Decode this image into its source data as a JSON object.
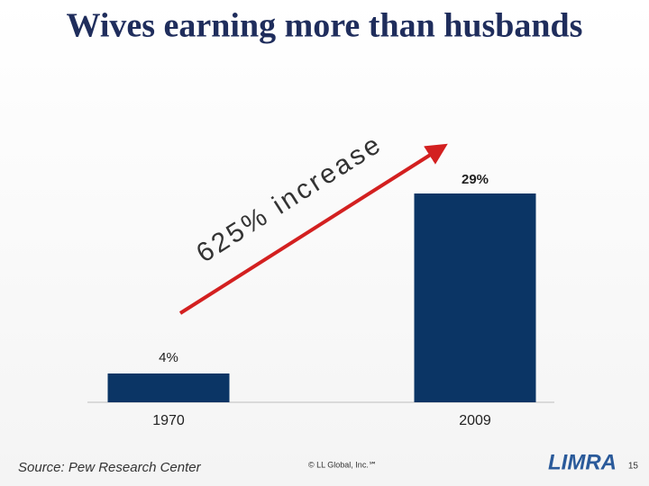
{
  "chart_data": {
    "type": "bar",
    "title": "Wives earning more than husbands",
    "categories": [
      "1970",
      "2009"
    ],
    "values": [
      4,
      29
    ],
    "value_labels": [
      "4%",
      "29%"
    ],
    "color": "#0b3565",
    "annotation": "625% increase",
    "source": "Source: Pew Research Center"
  },
  "footer": {
    "copyright": "© LL Global, Inc.℠",
    "logo": "LIMRA",
    "page": "15"
  }
}
